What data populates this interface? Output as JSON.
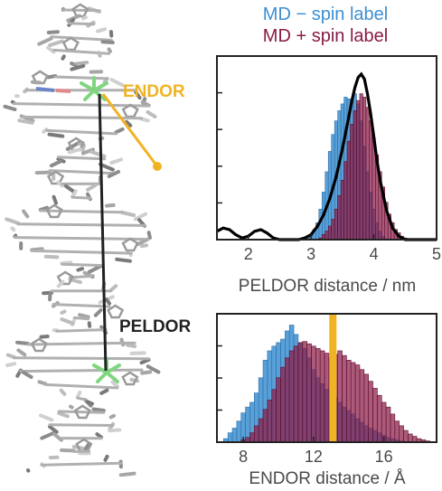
{
  "legend": {
    "md_minus": "MD − spin label",
    "md_plus": "MD + spin label"
  },
  "molecule": {
    "endor_label": "ENDOR",
    "peldor_label": "PELDOR"
  },
  "colors": {
    "md_minus": "#3d8fd1",
    "md_plus": "#8b1a46",
    "experiment": "#000000",
    "endor_line": "#f0b323",
    "spin_label": "#7fd67f",
    "dna": "#9a9a9a"
  },
  "chart_data": [
    {
      "type": "bar",
      "id": "peldor",
      "xlabel": "PELDOR distance / nm",
      "xlim": [
        1.5,
        5.0
      ],
      "xticks": [
        "2",
        "3",
        "4",
        "5"
      ],
      "xtick_values": [
        2,
        3,
        4,
        5
      ],
      "yticks": 4,
      "bin_width": 0.05,
      "series": [
        {
          "name": "MD − spin label",
          "bins_x": [
            2.95,
            3.0,
            3.05,
            3.1,
            3.15,
            3.2,
            3.25,
            3.3,
            3.35,
            3.4,
            3.45,
            3.5,
            3.55,
            3.6,
            3.65,
            3.7,
            3.75,
            3.8,
            3.85,
            3.9,
            3.95,
            4.0,
            4.05,
            4.1,
            4.15
          ],
          "values": [
            0.01,
            0.03,
            0.06,
            0.1,
            0.18,
            0.28,
            0.4,
            0.52,
            0.62,
            0.7,
            0.76,
            0.8,
            0.84,
            0.83,
            0.82,
            0.86,
            0.8,
            0.7,
            0.55,
            0.4,
            0.28,
            0.18,
            0.1,
            0.05,
            0.02
          ]
        },
        {
          "name": "MD + spin label",
          "bins_x": [
            3.15,
            3.2,
            3.25,
            3.3,
            3.35,
            3.4,
            3.45,
            3.5,
            3.55,
            3.6,
            3.65,
            3.7,
            3.75,
            3.8,
            3.85,
            3.9,
            3.95,
            4.0,
            4.05,
            4.1,
            4.15,
            4.2,
            4.25,
            4.3,
            4.35,
            4.4,
            4.45,
            4.5
          ],
          "values": [
            0.01,
            0.03,
            0.05,
            0.08,
            0.12,
            0.18,
            0.26,
            0.35,
            0.46,
            0.58,
            0.68,
            0.76,
            0.82,
            0.86,
            0.84,
            0.78,
            0.7,
            0.6,
            0.5,
            0.4,
            0.31,
            0.22,
            0.15,
            0.1,
            0.06,
            0.04,
            0.02,
            0.01
          ]
        }
      ],
      "experiment_curve": {
        "name": "PELDOR experiment",
        "x": [
          1.5,
          1.6,
          1.7,
          1.8,
          1.9,
          2.0,
          2.1,
          2.2,
          2.3,
          2.4,
          2.5,
          2.6,
          2.7,
          2.8,
          2.9,
          3.0,
          3.1,
          3.2,
          3.3,
          3.4,
          3.5,
          3.6,
          3.65,
          3.7,
          3.75,
          3.8,
          3.85,
          3.9,
          3.95,
          4.0,
          4.05,
          4.1,
          4.2,
          4.3,
          4.4,
          4.5,
          4.6,
          4.7,
          4.8,
          4.9,
          5.0
        ],
        "y": [
          0.05,
          0.07,
          0.06,
          0.03,
          0.01,
          0.02,
          0.05,
          0.06,
          0.04,
          0.01,
          0.0,
          0.0,
          0.0,
          0.0,
          0.01,
          0.03,
          0.08,
          0.15,
          0.25,
          0.38,
          0.55,
          0.74,
          0.84,
          0.92,
          0.98,
          1.0,
          0.97,
          0.88,
          0.76,
          0.62,
          0.48,
          0.36,
          0.18,
          0.07,
          0.02,
          0.0,
          0.0,
          0.0,
          0.0,
          0.0,
          0.0
        ]
      },
      "ylim": [
        0,
        1.05
      ]
    },
    {
      "type": "bar",
      "id": "endor",
      "xlabel": "ENDOR distance / Å",
      "xlim": [
        6.5,
        19.0
      ],
      "xticks": [
        "8",
        "12",
        "16"
      ],
      "xtick_values": [
        8,
        12,
        16
      ],
      "yticks": 3,
      "bin_width": 0.25,
      "series": [
        {
          "name": "MD − spin label",
          "bins_x": [
            7.0,
            7.25,
            7.5,
            7.75,
            8.0,
            8.25,
            8.5,
            8.75,
            9.0,
            9.25,
            9.5,
            9.75,
            10.0,
            10.25,
            10.5,
            10.75,
            11.0,
            11.25,
            11.5,
            11.75,
            12.0,
            12.25,
            12.5,
            12.75,
            13.0,
            13.25,
            13.5,
            13.75,
            14.0,
            14.25,
            14.5,
            14.75,
            15.0,
            15.25,
            15.5,
            15.75,
            16.0,
            16.25,
            16.5,
            16.75,
            17.0
          ],
          "values": [
            0.03,
            0.08,
            0.12,
            0.18,
            0.25,
            0.3,
            0.34,
            0.42,
            0.55,
            0.7,
            0.78,
            0.82,
            0.85,
            0.88,
            0.95,
            1.0,
            0.92,
            0.85,
            0.8,
            0.72,
            0.62,
            0.55,
            0.5,
            0.45,
            0.42,
            0.38,
            0.34,
            0.3,
            0.27,
            0.24,
            0.2,
            0.17,
            0.14,
            0.12,
            0.1,
            0.08,
            0.06,
            0.04,
            0.03,
            0.02,
            0.01
          ]
        },
        {
          "name": "MD + spin label",
          "bins_x": [
            8.0,
            8.25,
            8.5,
            8.75,
            9.0,
            9.25,
            9.5,
            9.75,
            10.0,
            10.25,
            10.5,
            10.75,
            11.0,
            11.25,
            11.5,
            11.75,
            12.0,
            12.25,
            12.5,
            12.75,
            13.0,
            13.25,
            13.5,
            13.75,
            14.0,
            14.25,
            14.5,
            14.75,
            15.0,
            15.25,
            15.5,
            15.75,
            16.0,
            16.25,
            16.5,
            16.75,
            17.0,
            17.25,
            17.5,
            17.75,
            18.0,
            18.25,
            18.5
          ],
          "values": [
            0.02,
            0.04,
            0.08,
            0.14,
            0.2,
            0.28,
            0.36,
            0.45,
            0.55,
            0.64,
            0.72,
            0.78,
            0.82,
            0.85,
            0.86,
            0.84,
            0.82,
            0.8,
            0.78,
            0.76,
            0.72,
            0.75,
            0.78,
            0.74,
            0.7,
            0.68,
            0.66,
            0.62,
            0.58,
            0.52,
            0.46,
            0.4,
            0.34,
            0.3,
            0.24,
            0.18,
            0.14,
            0.1,
            0.07,
            0.05,
            0.03,
            0.02,
            0.01
          ]
        }
      ],
      "reference_line": {
        "name": "ENDOR experiment",
        "x": 13.1
      },
      "ylim": [
        0,
        1.05
      ]
    }
  ]
}
